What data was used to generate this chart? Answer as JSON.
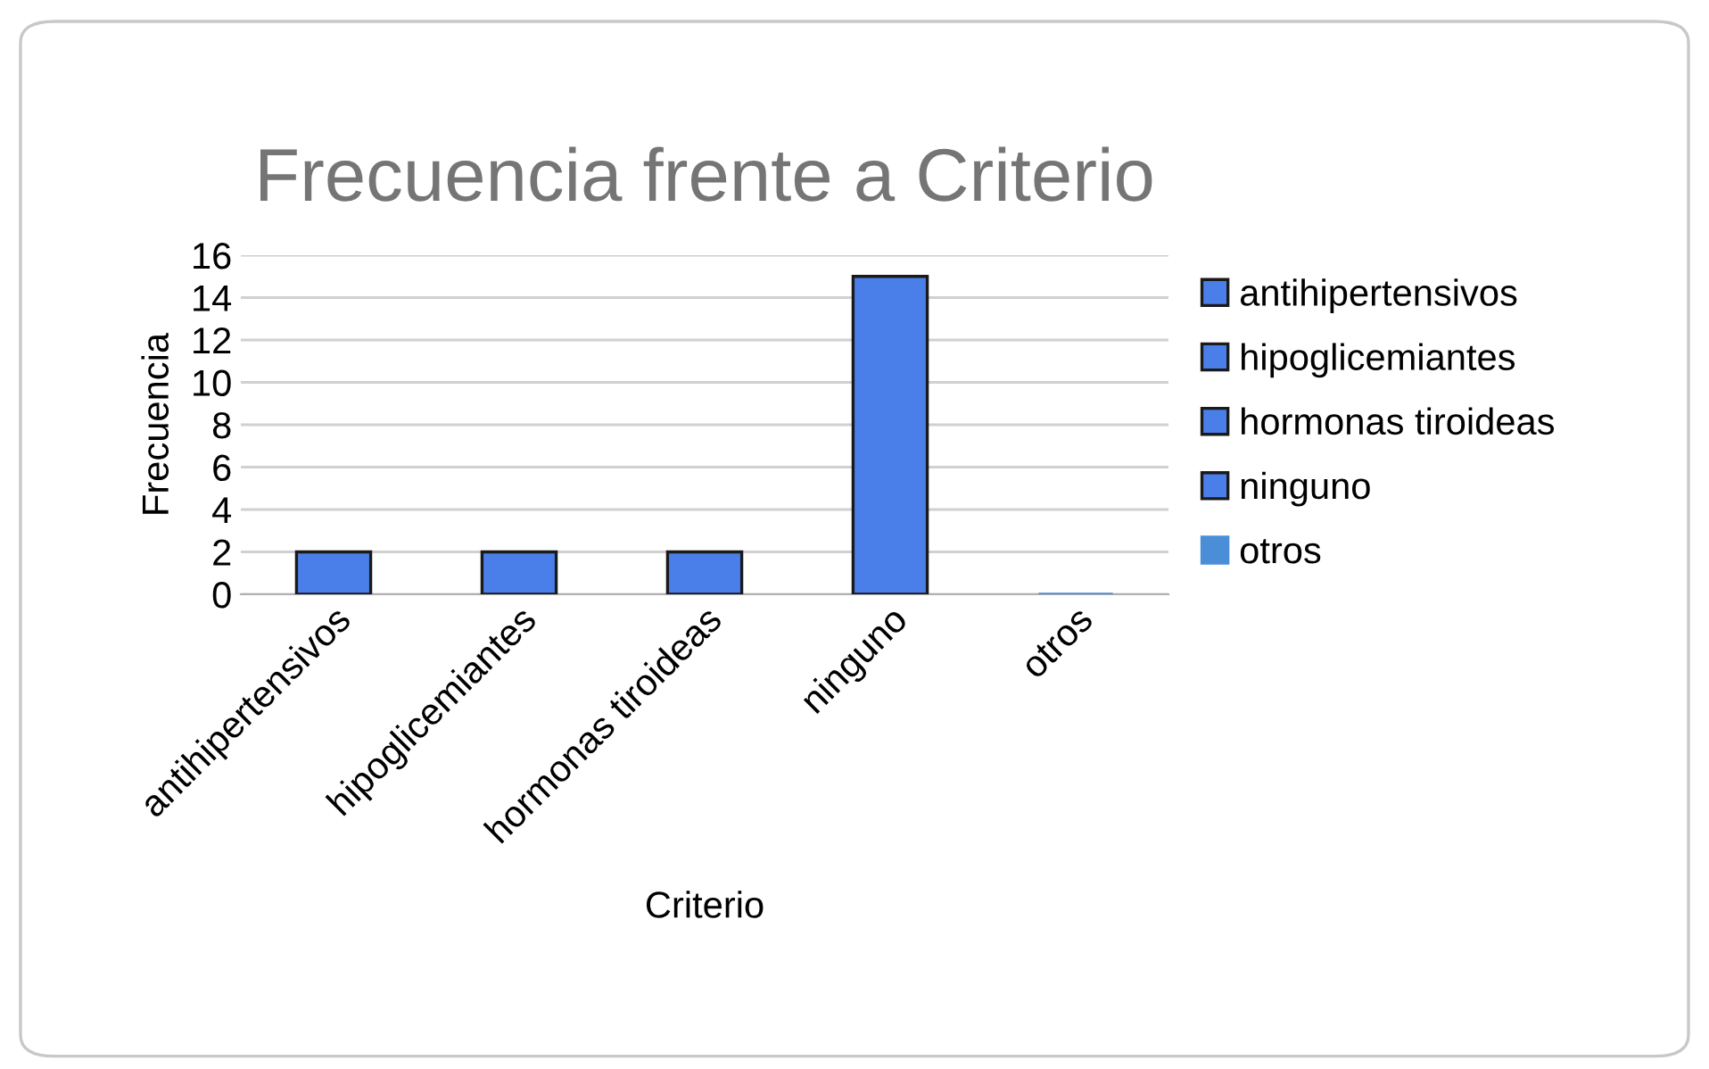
{
  "chart_data": {
    "type": "bar",
    "title": "Frecuencia frente a Criterio",
    "xlabel": "Criterio",
    "ylabel": "Frecuencia",
    "categories": [
      "antihipertensivos",
      "hipoglicemiantes",
      "hormonas tiroideas",
      "ninguno",
      "otros"
    ],
    "series": [
      {
        "name": "antihipertensivos",
        "color": "#4a7ee8",
        "values": [
          2,
          null,
          null,
          null,
          null
        ]
      },
      {
        "name": "hipoglicemiantes",
        "color": "#4a7ee8",
        "values": [
          null,
          2,
          null,
          null,
          null
        ]
      },
      {
        "name": "hormonas tiroideas",
        "color": "#4a7ee8",
        "values": [
          null,
          null,
          2,
          null,
          null
        ]
      },
      {
        "name": "ninguno",
        "color": "#4a7ee8",
        "values": [
          null,
          null,
          null,
          15,
          null
        ]
      },
      {
        "name": "otros",
        "color": "#4a8ed8",
        "values": [
          null,
          null,
          null,
          null,
          0
        ]
      }
    ],
    "ylim": [
      0,
      16
    ],
    "yticks": [
      0,
      2,
      4,
      6,
      8,
      10,
      12,
      14,
      16
    ],
    "grid": "y",
    "legend": "right"
  }
}
